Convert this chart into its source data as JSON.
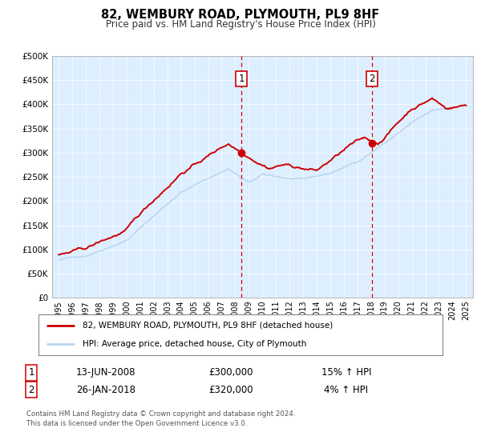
{
  "title": "82, WEMBURY ROAD, PLYMOUTH, PL9 8HF",
  "subtitle": "Price paid vs. HM Land Registry's House Price Index (HPI)",
  "legend_line1": "82, WEMBURY ROAD, PLYMOUTH, PL9 8HF (detached house)",
  "legend_line2": "HPI: Average price, detached house, City of Plymouth",
  "sale1_date": "13-JUN-2008",
  "sale1_price": "£300,000",
  "sale1_hpi": "15% ↑ HPI",
  "sale2_date": "26-JAN-2018",
  "sale2_price": "£320,000",
  "sale2_hpi": "4% ↑ HPI",
  "footer1": "Contains HM Land Registry data © Crown copyright and database right 2024.",
  "footer2": "This data is licensed under the Open Government Licence v3.0.",
  "hpi_color": "#b8d4f0",
  "price_color": "#cc0000",
  "sale_dot_color": "#cc0000",
  "vline_color": "#cc0000",
  "background_color": "#ffffff",
  "plot_bg_color": "#ddeeff",
  "ylim": [
    0,
    500000
  ],
  "yticks": [
    0,
    50000,
    100000,
    150000,
    200000,
    250000,
    300000,
    350000,
    400000,
    450000,
    500000
  ],
  "ytick_labels": [
    "£0",
    "£50K",
    "£100K",
    "£150K",
    "£200K",
    "£250K",
    "£300K",
    "£350K",
    "£400K",
    "£450K",
    "£500K"
  ],
  "sale1_x": 2008.45,
  "sale1_y": 300000,
  "sale2_x": 2018.07,
  "sale2_y": 320000,
  "xmin": 1994.5,
  "xmax": 2025.5
}
